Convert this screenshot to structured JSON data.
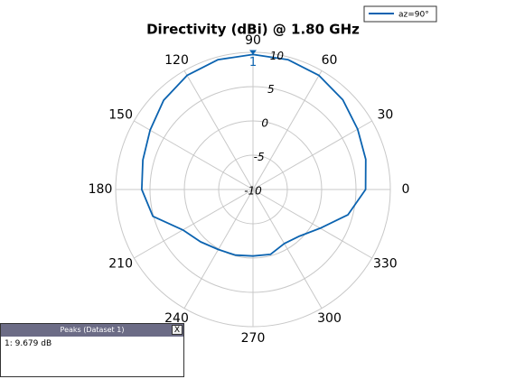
{
  "chart_data": {
    "type": "polar",
    "title": "Directivity (dBi) @ 1.80 GHz",
    "angle_ticks": [
      0,
      30,
      60,
      90,
      120,
      150,
      180,
      210,
      240,
      270,
      300,
      330
    ],
    "rlim": [
      -10,
      10
    ],
    "rticks": [
      -10,
      -5,
      0,
      5,
      10
    ],
    "rtick_angle": 80,
    "grid": true,
    "legend": "upper right",
    "series": [
      {
        "name": "az=90°",
        "color": "#0b63b0",
        "angles": [
          0,
          15,
          30,
          45,
          60,
          75,
          90,
          105,
          120,
          135,
          150,
          165,
          180,
          195,
          210,
          225,
          240,
          255,
          270,
          285,
          300,
          315,
          330,
          345
        ],
        "values": [
          6.4,
          7.0,
          7.6,
          8.5,
          9.2,
          9.6,
          9.68,
          9.6,
          9.2,
          8.4,
          7.3,
          6.6,
          6.2,
          5.1,
          1.8,
          0.8,
          0.1,
          -0.1,
          -0.3,
          -0.2,
          -0.9,
          -0.4,
          1.3,
          4.3
        ]
      }
    ],
    "peak_marker": {
      "label": "1",
      "angle": 90,
      "value": 9.679
    }
  },
  "peaks_panel": {
    "title": "Peaks (Dataset 1)",
    "close": "X",
    "rows": [
      "1: 9.679 dB"
    ]
  }
}
